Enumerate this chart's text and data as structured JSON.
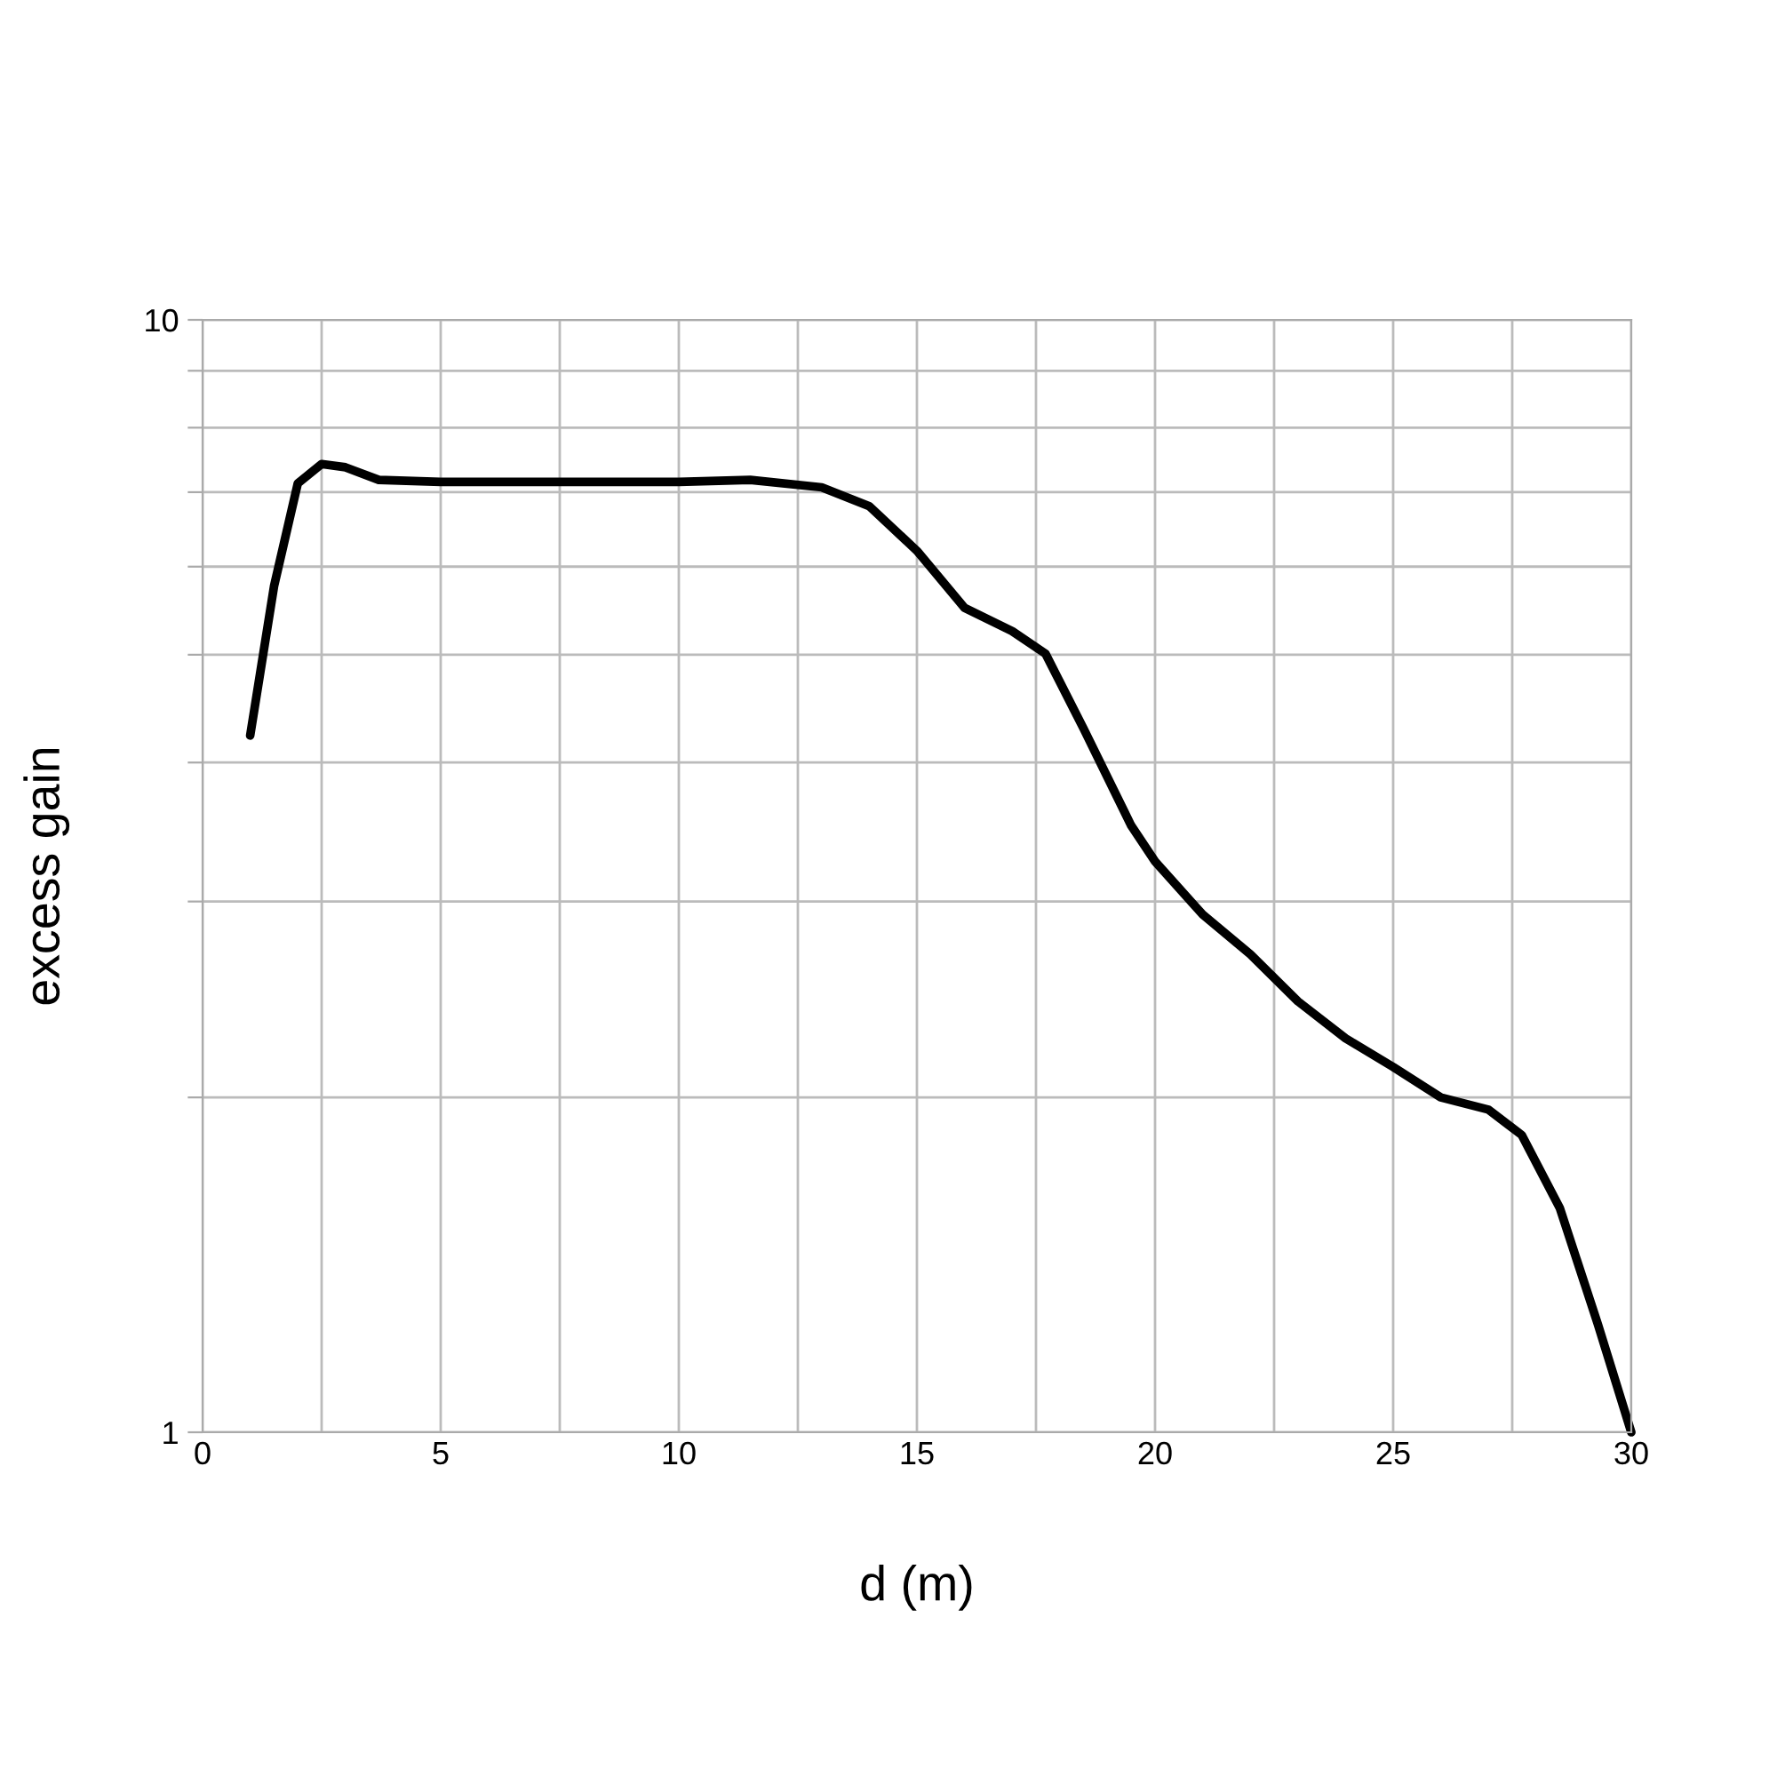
{
  "chart_data": {
    "type": "line",
    "xlabel": "d (m)",
    "ylabel": "excess gain",
    "log": "y",
    "grid": true,
    "marker": "none",
    "line_style": "solid",
    "xlim": [
      0,
      30
    ],
    "ylim": [
      1,
      10
    ],
    "xticks": [
      0,
      {
        "value": 2.5,
        "label": null
      },
      5,
      {
        "value": 7.5,
        "label": null
      },
      10,
      {
        "value": 12.5,
        "label": null
      },
      15,
      {
        "value": 17.5,
        "label": null
      },
      20,
      {
        "value": 22.5,
        "label": null
      },
      25,
      {
        "value": 27.5,
        "label": null
      },
      30
    ],
    "yticks": [
      1,
      {
        "value": 2,
        "label": null
      },
      {
        "value": 3,
        "label": null
      },
      {
        "value": 4,
        "label": null
      },
      {
        "value": 5,
        "label": null
      },
      {
        "value": 6,
        "label": null
      },
      {
        "value": 7,
        "label": null
      },
      {
        "value": 8,
        "label": null
      },
      {
        "value": 9,
        "label": null
      },
      10
    ],
    "series": [
      {
        "color": "#000000",
        "x": [
          1,
          1.5,
          2,
          2.5,
          3,
          3.7,
          5,
          10,
          11.5,
          13,
          14,
          15,
          16,
          17,
          17.7,
          18.5,
          19.5,
          20,
          21,
          22,
          23,
          24,
          25,
          26,
          27,
          27.7,
          28.5,
          29.3,
          30
        ],
        "values": [
          4.23,
          5.76,
          7.13,
          7.42,
          7.37,
          7.18,
          7.15,
          7.15,
          7.18,
          7.07,
          6.8,
          6.2,
          5.51,
          5.25,
          5.01,
          4.29,
          3.51,
          3.26,
          2.92,
          2.69,
          2.44,
          2.26,
          2.13,
          2.0,
          1.95,
          1.85,
          1.59,
          1.25,
          1.0
        ]
      }
    ]
  }
}
